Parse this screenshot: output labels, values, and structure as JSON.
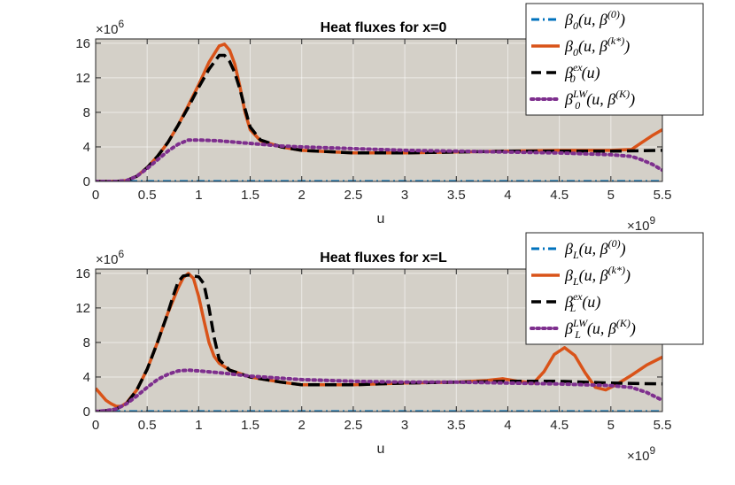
{
  "chart_data": [
    {
      "type": "line",
      "title": "Heat fluxes for x=0",
      "xlabel": "u",
      "x_exponent_label": "×10",
      "x_exponent": "9",
      "y_exponent_label": "×10",
      "y_exponent": "6",
      "xlim": [
        0,
        5.5
      ],
      "ylim": [
        0,
        16.5
      ],
      "x_ticks": [
        "0",
        "0.5",
        "1",
        "1.5",
        "2",
        "2.5",
        "3",
        "3.5",
        "4",
        "4.5",
        "5",
        "5.5"
      ],
      "y_ticks": [
        "0",
        "4",
        "8",
        "12",
        "16"
      ],
      "grid": true,
      "background": "#d4d0c8",
      "legend_position": "top-right",
      "series": [
        {
          "name": "β0(u, β(0))",
          "legend_parts": {
            "base": "β",
            "sub": "0",
            "args": "(u, β",
            "sup": "(0)",
            "tail": ")"
          },
          "color": "#0072bd",
          "style": "dashdot",
          "width": 3,
          "x": [
            0,
            5.5
          ],
          "y": [
            0,
            0
          ]
        },
        {
          "name": "β0(u, β(k*))",
          "legend_parts": {
            "base": "β",
            "sub": "0",
            "args": "(u, β",
            "sup": "(k*)",
            "tail": ")"
          },
          "color": "#d95319",
          "style": "solid",
          "width": 3.5,
          "x": [
            0,
            0.2,
            0.3,
            0.4,
            0.5,
            0.6,
            0.7,
            0.8,
            0.9,
            1.0,
            1.1,
            1.2,
            1.25,
            1.3,
            1.35,
            1.4,
            1.45,
            1.5,
            1.6,
            1.8,
            2.0,
            2.5,
            3.0,
            3.5,
            4.0,
            4.5,
            5.0,
            5.2,
            5.3,
            5.4,
            5.5
          ],
          "y": [
            0,
            0,
            0.1,
            0.6,
            1.6,
            2.9,
            4.5,
            6.5,
            8.8,
            11.2,
            13.8,
            15.7,
            15.9,
            15.2,
            13.6,
            11.0,
            8.0,
            6.0,
            4.7,
            4.0,
            3.6,
            3.3,
            3.3,
            3.4,
            3.5,
            3.6,
            3.6,
            3.7,
            4.5,
            5.3,
            6.0
          ]
        },
        {
          "name": "β0ex(u)",
          "legend_parts": {
            "base": "β",
            "sub": "0",
            "args": "(u",
            "sup": "ex",
            "tail": ")"
          },
          "color": "#000000",
          "style": "dash",
          "width": 3.5,
          "x": [
            0,
            0.2,
            0.3,
            0.4,
            0.5,
            0.6,
            0.7,
            0.8,
            0.9,
            1.0,
            1.1,
            1.2,
            1.25,
            1.3,
            1.35,
            1.4,
            1.45,
            1.5,
            1.6,
            1.8,
            2.0,
            2.5,
            3.0,
            3.5,
            4.0,
            4.5,
            5.0,
            5.5
          ],
          "y": [
            0,
            0,
            0.1,
            0.6,
            1.6,
            2.9,
            4.5,
            6.5,
            8.6,
            10.9,
            13.0,
            14.6,
            14.6,
            13.9,
            12.6,
            10.7,
            8.4,
            6.3,
            4.8,
            4.0,
            3.6,
            3.3,
            3.3,
            3.4,
            3.5,
            3.5,
            3.5,
            3.6
          ]
        },
        {
          "name": "β0LW(u, β(K))",
          "legend_parts": {
            "base": "β",
            "sub": "0",
            "args": "(u, β",
            "sup": "LW",
            "sup2": "(K)",
            "tail": ")"
          },
          "color": "#7e2f8e",
          "style": "dot",
          "width": 4,
          "x": [
            0,
            0.2,
            0.3,
            0.4,
            0.5,
            0.6,
            0.7,
            0.8,
            0.9,
            1.0,
            1.2,
            1.4,
            1.6,
            1.8,
            2.0,
            2.5,
            3.0,
            3.5,
            4.0,
            4.5,
            5.0,
            5.2,
            5.3,
            5.4,
            5.5
          ],
          "y": [
            0,
            0,
            0.1,
            0.6,
            1.5,
            2.5,
            3.5,
            4.3,
            4.8,
            4.8,
            4.7,
            4.5,
            4.3,
            4.1,
            4.0,
            3.8,
            3.6,
            3.5,
            3.4,
            3.3,
            3.1,
            2.9,
            2.5,
            2.0,
            1.3
          ]
        }
      ]
    },
    {
      "type": "line",
      "title": "Heat fluxes for x=L",
      "xlabel": "u",
      "x_exponent_label": "×10",
      "x_exponent": "9",
      "y_exponent_label": "×10",
      "y_exponent": "6",
      "xlim": [
        0,
        5.5
      ],
      "ylim": [
        0,
        16.5
      ],
      "x_ticks": [
        "0",
        "0.5",
        "1",
        "1.5",
        "2",
        "2.5",
        "3",
        "3.5",
        "4",
        "4.5",
        "5",
        "5.5"
      ],
      "y_ticks": [
        "0",
        "4",
        "8",
        "12",
        "16"
      ],
      "grid": true,
      "background": "#d4d0c8",
      "legend_position": "top-right",
      "series": [
        {
          "name": "βL(u, β(0))",
          "legend_parts": {
            "base": "β",
            "sub": "L",
            "args": "(u, β",
            "sup": "(0)",
            "tail": ")"
          },
          "color": "#0072bd",
          "style": "dashdot",
          "width": 3,
          "x": [
            0,
            5.5
          ],
          "y": [
            0,
            0
          ]
        },
        {
          "name": "βL(u, β(k*))",
          "legend_parts": {
            "base": "β",
            "sub": "L",
            "args": "(u, β",
            "sup": "(k*)",
            "tail": ")"
          },
          "color": "#d95319",
          "style": "solid",
          "width": 3.5,
          "x": [
            0,
            0.05,
            0.1,
            0.15,
            0.2,
            0.25,
            0.3,
            0.4,
            0.5,
            0.6,
            0.7,
            0.8,
            0.85,
            0.9,
            0.95,
            1.0,
            1.05,
            1.1,
            1.15,
            1.2,
            1.3,
            1.5,
            1.8,
            2.0,
            2.5,
            3.0,
            3.5,
            3.8,
            3.95,
            4.1,
            4.25,
            4.35,
            4.45,
            4.55,
            4.65,
            4.75,
            4.85,
            4.95,
            5.05,
            5.2,
            5.35,
            5.5
          ],
          "y": [
            2.7,
            2.0,
            1.3,
            0.9,
            0.6,
            0.6,
            1.0,
            2.5,
            4.9,
            8.0,
            11.4,
            14.3,
            15.5,
            16.0,
            15.4,
            13.3,
            10.6,
            8.0,
            6.4,
            5.6,
            4.8,
            4.0,
            3.4,
            3.1,
            3.1,
            3.3,
            3.4,
            3.6,
            3.8,
            3.5,
            3.3,
            4.6,
            6.6,
            7.4,
            6.5,
            4.5,
            2.8,
            2.5,
            3.1,
            4.2,
            5.4,
            6.3
          ]
        },
        {
          "name": "βLex(u)",
          "legend_parts": {
            "base": "β",
            "sub": "L",
            "args": "(u",
            "sup": "ex",
            "tail": ")"
          },
          "color": "#000000",
          "style": "dash",
          "width": 3.5,
          "x": [
            0,
            0.1,
            0.2,
            0.3,
            0.4,
            0.5,
            0.6,
            0.7,
            0.75,
            0.8,
            0.85,
            0.9,
            1.0,
            1.05,
            1.1,
            1.15,
            1.2,
            1.3,
            1.5,
            1.8,
            2.0,
            2.5,
            3.0,
            3.5,
            4.0,
            4.5,
            5.0,
            5.5
          ],
          "y": [
            0,
            0.1,
            0.3,
            0.9,
            2.5,
            4.9,
            8.0,
            11.4,
            13.3,
            15.0,
            15.7,
            15.8,
            15.6,
            14.8,
            12.0,
            8.6,
            6.0,
            4.8,
            4.0,
            3.4,
            3.1,
            3.1,
            3.3,
            3.4,
            3.5,
            3.5,
            3.3,
            3.2
          ]
        },
        {
          "name": "βLLW(u, β(K))",
          "legend_parts": {
            "base": "β",
            "sub": "L",
            "args": "(u, β",
            "sup": "LW",
            "sup2": "(K)",
            "tail": ")"
          },
          "color": "#7e2f8e",
          "style": "dot",
          "width": 4,
          "x": [
            0,
            0.1,
            0.2,
            0.3,
            0.4,
            0.5,
            0.6,
            0.7,
            0.8,
            0.9,
            1.0,
            1.2,
            1.5,
            2.0,
            2.5,
            3.0,
            3.5,
            4.0,
            4.5,
            5.0,
            5.2,
            5.35,
            5.5
          ],
          "y": [
            0,
            0.1,
            0.3,
            0.9,
            1.8,
            2.8,
            3.7,
            4.3,
            4.7,
            4.8,
            4.7,
            4.5,
            4.1,
            3.7,
            3.5,
            3.4,
            3.4,
            3.3,
            3.2,
            3.0,
            2.8,
            2.2,
            1.3
          ]
        }
      ]
    }
  ]
}
